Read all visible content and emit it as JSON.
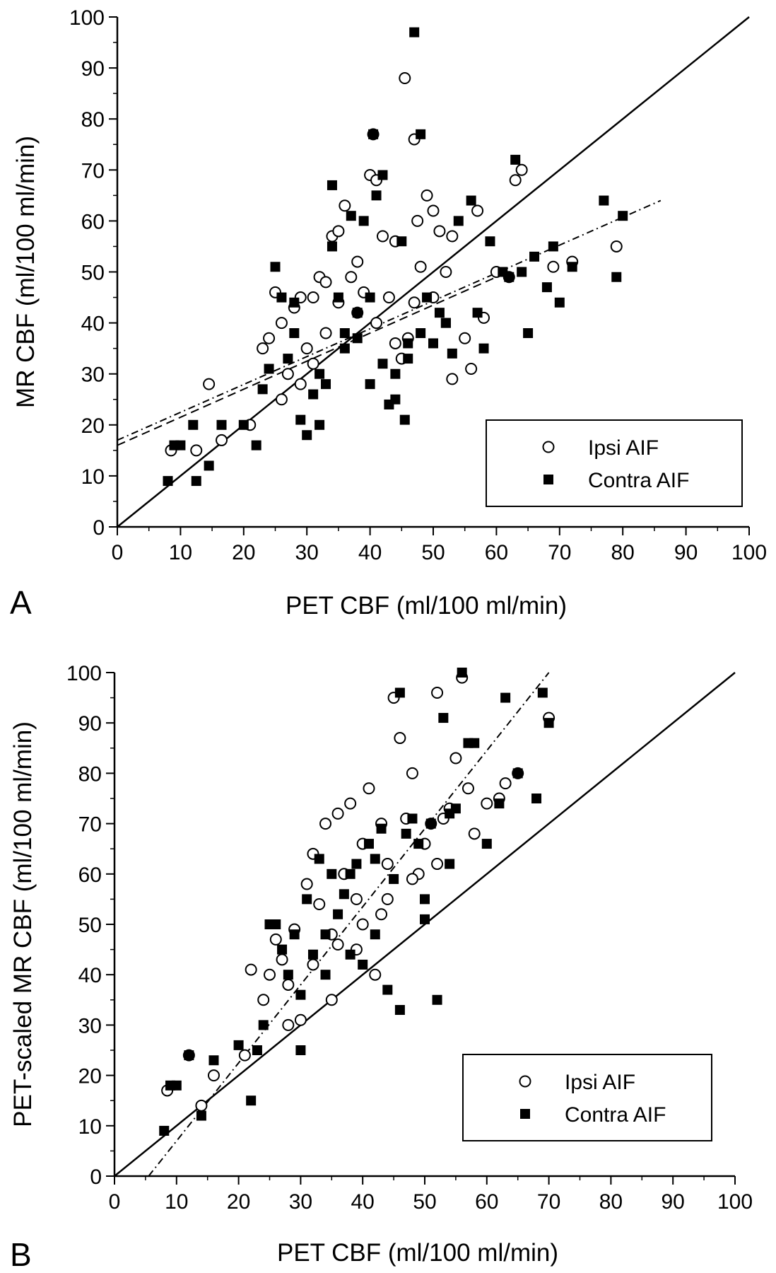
{
  "chart_data": [
    {
      "type": "scatter",
      "panel_label": "A",
      "xlabel": "PET CBF (ml/100 ml/min)",
      "ylabel": "MR CBF (ml/100 ml/min)",
      "xlim": [
        0,
        100
      ],
      "ylim": [
        0,
        100
      ],
      "x_ticks": [
        "0",
        "10",
        "20",
        "30",
        "40",
        "50",
        "60",
        "70",
        "80",
        "90",
        "100"
      ],
      "y_ticks": [
        "0",
        "10",
        "20",
        "30",
        "40",
        "50",
        "60",
        "70",
        "80",
        "90",
        "100"
      ],
      "grid": false,
      "legend_position": "bottom-right",
      "series": [
        {
          "name": "Ipsi AIF",
          "marker": "open-circle",
          "x": [
            8.5,
            12.5,
            14.5,
            16.5,
            21,
            23,
            24,
            25,
            26,
            27,
            28,
            29,
            30,
            31,
            32,
            33,
            34,
            35,
            36,
            37,
            38,
            39,
            40,
            40.5,
            41,
            42,
            43,
            44,
            45,
            45.5,
            46,
            47,
            47.5,
            48,
            49,
            50,
            51,
            52,
            53,
            55,
            56,
            57,
            58,
            60,
            62,
            63,
            64,
            69,
            72,
            79,
            26,
            29,
            31,
            33,
            35,
            38,
            41,
            44,
            47,
            50,
            53
          ],
          "y": [
            15,
            15,
            28,
            17,
            20,
            35,
            37,
            46,
            40,
            30,
            43,
            45,
            35,
            45,
            49,
            48,
            57,
            58,
            63,
            49,
            42,
            46,
            69,
            77,
            68,
            57,
            45,
            56,
            33,
            88,
            37,
            76,
            60,
            51,
            65,
            62,
            58,
            50,
            57,
            37,
            31,
            62,
            41,
            50,
            49,
            68,
            70,
            51,
            52,
            55,
            25,
            28,
            32,
            38,
            44,
            52,
            40,
            36,
            44,
            45,
            29
          ],
          "ipsi_fit": {
            "type": "linear",
            "x_range": [
              0,
              86
            ],
            "y_start": 16.5,
            "y_end": 64
          }
        },
        {
          "name": "Contra AIF",
          "marker": "filled-square",
          "x": [
            8,
            9,
            10,
            12,
            12.5,
            14.5,
            16.5,
            20,
            22,
            23,
            24,
            25,
            26,
            27,
            28,
            29,
            30,
            31,
            32,
            33,
            34,
            35,
            36,
            37,
            38,
            39,
            40,
            40.5,
            41,
            42,
            43,
            44,
            45,
            45.5,
            46,
            47,
            48,
            49,
            50,
            51,
            52,
            53,
            54,
            56,
            57,
            58,
            59,
            61,
            62,
            63,
            64,
            65,
            66,
            68,
            69,
            70,
            72,
            77,
            79,
            80,
            28,
            32,
            36,
            40,
            44,
            48,
            52,
            34,
            38,
            42,
            46
          ],
          "y": [
            9,
            16,
            16,
            20,
            9,
            12,
            20,
            20,
            16,
            27,
            31,
            51,
            45,
            33,
            38,
            21,
            18,
            26,
            20,
            28,
            67,
            45,
            35,
            61,
            37,
            60,
            28,
            77,
            65,
            69,
            24,
            30,
            56,
            21,
            33,
            97,
            77,
            45,
            36,
            42,
            40,
            34,
            60,
            64,
            42,
            35,
            56,
            50,
            49,
            72,
            50,
            38,
            53,
            47,
            55,
            44,
            51,
            64,
            49,
            61,
            44,
            30,
            38,
            45,
            25,
            38,
            40,
            55,
            42,
            32,
            36
          ]
        }
      ],
      "fits": [
        {
          "name": "",
          "line": "solid",
          "x": [
            0,
            100
          ],
          "y": [
            0,
            100
          ]
        },
        {
          "name": "",
          "line": "dash-dot",
          "x": [
            0,
            86
          ],
          "y": [
            17,
            64
          ]
        },
        {
          "name": "",
          "line": "dashed",
          "x": [
            0,
            60
          ],
          "y": [
            16,
            49
          ]
        }
      ]
    },
    {
      "type": "scatter",
      "panel_label": "B",
      "xlabel": "PET CBF (ml/100 ml/min)",
      "ylabel": "PET-scaled MR CBF (ml/100 ml/min)",
      "xlim": [
        0,
        100
      ],
      "ylim": [
        0,
        100
      ],
      "x_ticks": [
        "0",
        "10",
        "20",
        "30",
        "40",
        "50",
        "60",
        "70",
        "80",
        "90",
        "100"
      ],
      "y_ticks": [
        "0",
        "10",
        "20",
        "30",
        "40",
        "50",
        "60",
        "70",
        "80",
        "90",
        "100"
      ],
      "grid": false,
      "legend_position": "bottom-right",
      "series": [
        {
          "name": "Ipsi AIF",
          "marker": "open-circle",
          "x": [
            8.5,
            12,
            14,
            16,
            21,
            22,
            24,
            25,
            26,
            27,
            28,
            29,
            30,
            31,
            32,
            33,
            34,
            35,
            36,
            37,
            38,
            39,
            40,
            41,
            42,
            43,
            44,
            45,
            46,
            47,
            48,
            49,
            50,
            51,
            52,
            53,
            54,
            55,
            56,
            57,
            58,
            60,
            62,
            63,
            65,
            70,
            28,
            32,
            36,
            40,
            44,
            48,
            52,
            35,
            39,
            43
          ],
          "y": [
            17,
            24,
            14,
            20,
            24,
            41,
            35,
            40,
            47,
            43,
            30,
            49,
            31,
            58,
            64,
            54,
            70,
            48,
            72,
            60,
            74,
            55,
            66,
            77,
            40,
            70,
            62,
            95,
            87,
            71,
            80,
            60,
            66,
            70,
            96,
            71,
            73,
            83,
            99,
            77,
            68,
            74,
            75,
            78,
            80,
            91,
            38,
            42,
            46,
            50,
            55,
            59,
            62,
            35,
            45,
            52
          ],
          "fit": {
            "type": "linear",
            "x_range": [
              5.5,
              70
            ],
            "y_start": 0,
            "y_end": 100
          }
        },
        {
          "name": "Contra AIF",
          "marker": "filled-square",
          "x": [
            8,
            9,
            10,
            12,
            14,
            16,
            20,
            22,
            23,
            24,
            25,
            26,
            27,
            28,
            29,
            30,
            31,
            32,
            33,
            34,
            35,
            36,
            37,
            38,
            39,
            40,
            41,
            42,
            43,
            44,
            45,
            46,
            47,
            48,
            49,
            50,
            51,
            52,
            53,
            54,
            55,
            56,
            57,
            58,
            60,
            62,
            63,
            65,
            68,
            69,
            70,
            30,
            34,
            38,
            42,
            46,
            50,
            54
          ],
          "y": [
            9,
            18,
            18,
            24,
            12,
            23,
            26,
            15,
            25,
            30,
            50,
            50,
            45,
            40,
            48,
            25,
            55,
            44,
            63,
            48,
            60,
            52,
            56,
            60,
            62,
            42,
            66,
            63,
            69,
            37,
            59,
            96,
            68,
            71,
            66,
            51,
            70,
            35,
            91,
            62,
            73,
            100,
            86,
            86,
            66,
            74,
            95,
            80,
            75,
            96,
            90,
            36,
            40,
            44,
            48,
            33,
            55,
            72
          ]
        }
      ],
      "fits": [
        {
          "name": "",
          "line": "solid",
          "x": [
            0,
            100
          ],
          "y": [
            0,
            100
          ]
        },
        {
          "name": "",
          "line": "dash-dot",
          "x": [
            5.5,
            70
          ],
          "y": [
            0,
            100
          ]
        }
      ]
    }
  ]
}
